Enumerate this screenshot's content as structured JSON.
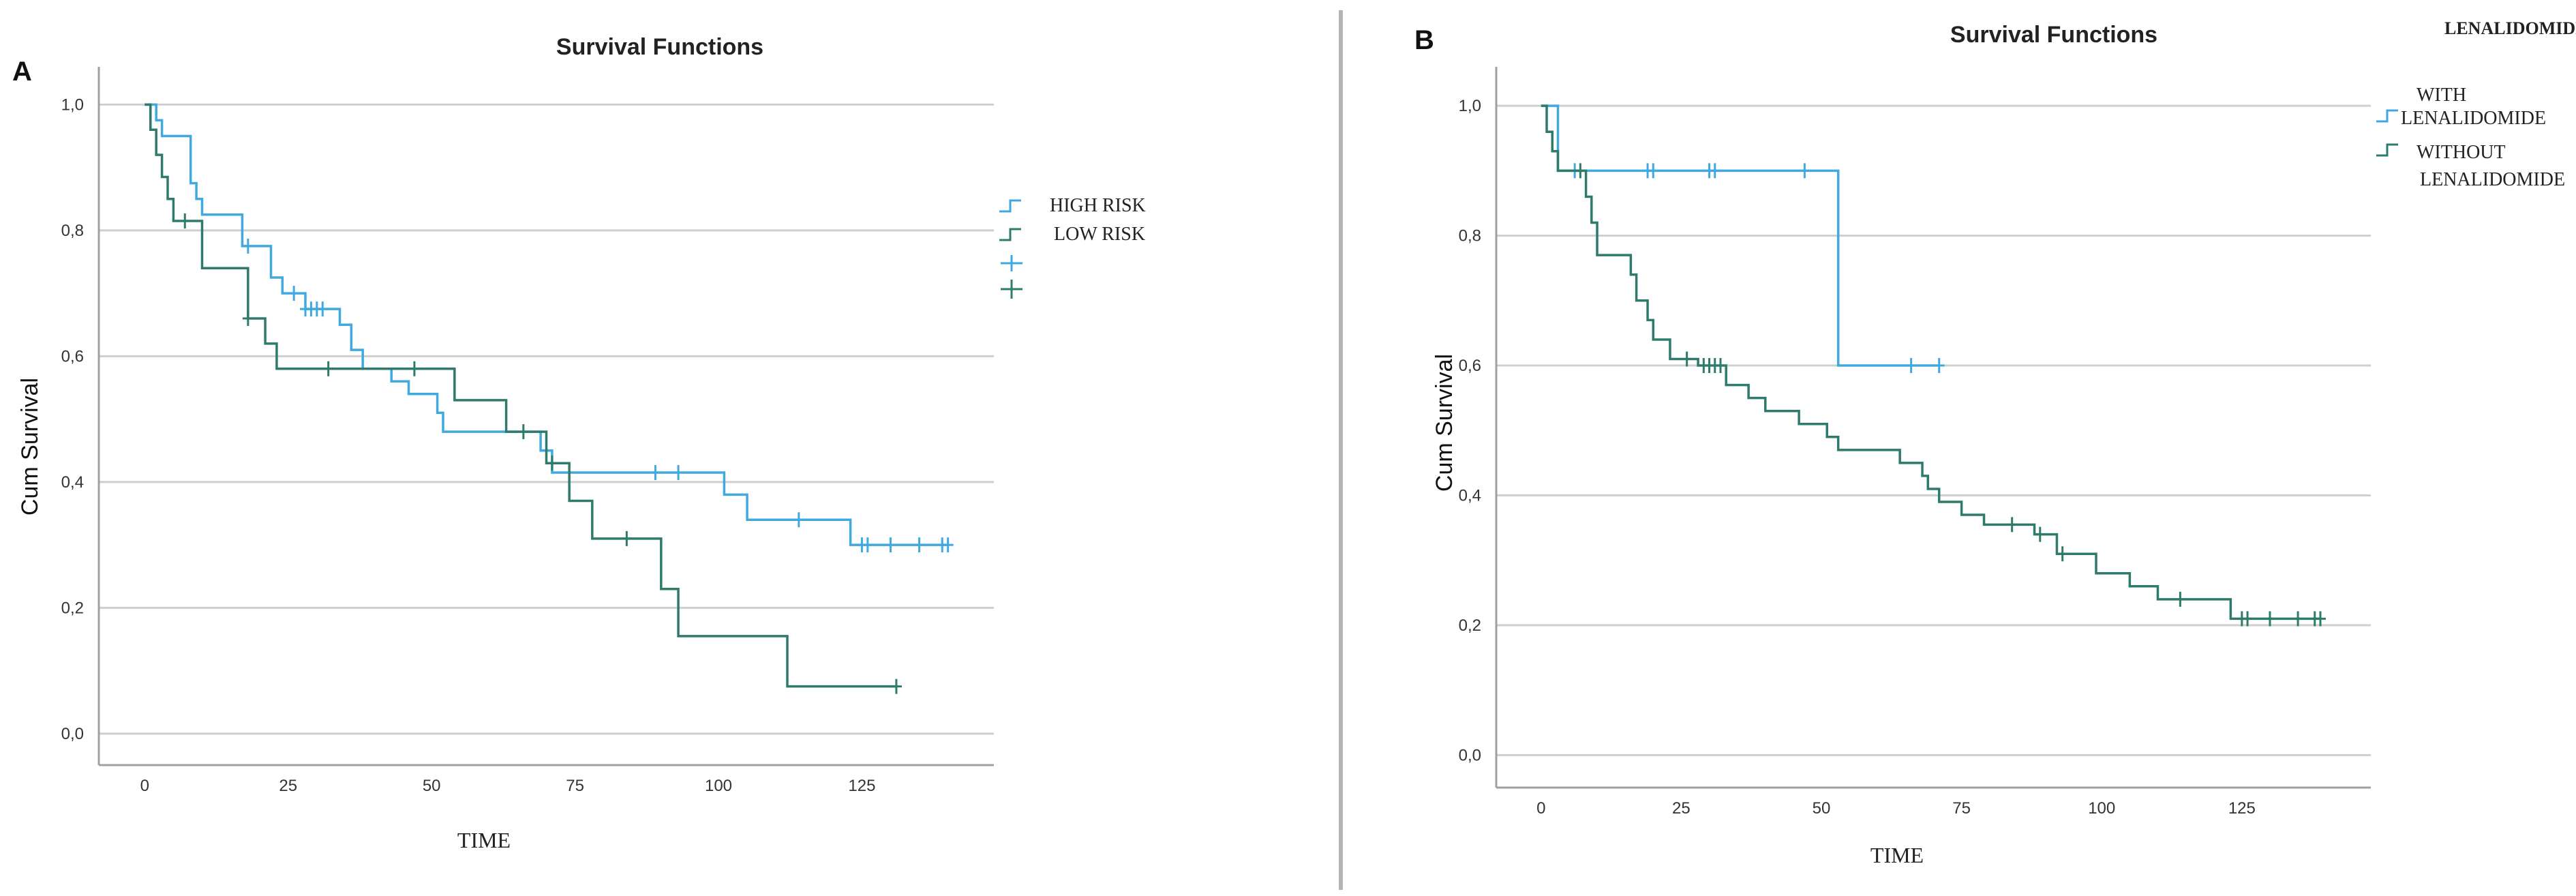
{
  "colors": {
    "high": "#3fa9e0",
    "low": "#2e7b6b",
    "with": "#3fa9e0",
    "without": "#2e7b6b",
    "grid": "#cfcfcf",
    "axis": "#a0a0a0"
  },
  "panels": [
    {
      "letter": "A",
      "legend_title": ""
    },
    {
      "letter": "B",
      "legend_title": "LENALIDOMIDE"
    }
  ],
  "chart_data": [
    {
      "type": "line",
      "title": "Survival Functions",
      "xlabel": "TIME",
      "ylabel": "Cum Survival",
      "xlim": [
        -8,
        148
      ],
      "ylim": [
        -0.05,
        1.06
      ],
      "xticks": [
        0,
        25,
        50,
        75,
        100,
        125
      ],
      "xtick_labels": [
        "0",
        "25",
        "50",
        "75",
        "100",
        "125"
      ],
      "yticks": [
        0.0,
        0.2,
        0.4,
        0.6,
        0.8,
        1.0
      ],
      "ytick_labels": [
        "0,0",
        "0,2",
        "0,4",
        "0,6",
        "0,8",
        "1,0"
      ],
      "grid": "horizontal",
      "legend_entries": [
        "HIGH RISK",
        "LOW RISK"
      ],
      "series": [
        {
          "name": "HIGH RISK",
          "color_key": "high",
          "steps": [
            [
              0,
              1.0
            ],
            [
              2,
              0.975
            ],
            [
              3,
              0.95
            ],
            [
              8,
              0.875
            ],
            [
              9,
              0.85
            ],
            [
              10,
              0.825
            ],
            [
              17,
              0.775
            ],
            [
              22,
              0.725
            ],
            [
              24,
              0.7
            ],
            [
              28,
              0.675
            ],
            [
              34,
              0.65
            ],
            [
              36,
              0.61
            ],
            [
              38,
              0.58
            ],
            [
              43,
              0.56
            ],
            [
              46,
              0.54
            ],
            [
              51,
              0.51
            ],
            [
              52,
              0.48
            ],
            [
              69,
              0.45
            ],
            [
              71,
              0.415
            ],
            [
              101,
              0.38
            ],
            [
              105,
              0.34
            ],
            [
              123,
              0.3
            ],
            [
              140,
              0.3
            ]
          ],
          "censored": [
            [
              18,
              0.775
            ],
            [
              26,
              0.7
            ],
            [
              28,
              0.675
            ],
            [
              29,
              0.675
            ],
            [
              30,
              0.675
            ],
            [
              31,
              0.675
            ],
            [
              89,
              0.415
            ],
            [
              93,
              0.415
            ],
            [
              114,
              0.34
            ],
            [
              125,
              0.3
            ],
            [
              126,
              0.3
            ],
            [
              130,
              0.3
            ],
            [
              135,
              0.3
            ],
            [
              139,
              0.3
            ],
            [
              140,
              0.3
            ]
          ]
        },
        {
          "name": "LOW RISK",
          "color_key": "low",
          "steps": [
            [
              0,
              1.0
            ],
            [
              1,
              0.96
            ],
            [
              2,
              0.92
            ],
            [
              3,
              0.885
            ],
            [
              4,
              0.85
            ],
            [
              5,
              0.815
            ],
            [
              10,
              0.74
            ],
            [
              18,
              0.66
            ],
            [
              21,
              0.62
            ],
            [
              23,
              0.58
            ],
            [
              54,
              0.53
            ],
            [
              63,
              0.48
            ],
            [
              70,
              0.43
            ],
            [
              74,
              0.37
            ],
            [
              78,
              0.31
            ],
            [
              90,
              0.23
            ],
            [
              93,
              0.155
            ],
            [
              112,
              0.075
            ],
            [
              131,
              0.075
            ]
          ],
          "censored": [
            [
              7,
              0.815
            ],
            [
              18,
              0.66
            ],
            [
              32,
              0.58
            ],
            [
              47,
              0.58
            ],
            [
              66,
              0.48
            ],
            [
              71,
              0.43
            ],
            [
              84,
              0.31
            ],
            [
              131,
              0.075
            ]
          ]
        }
      ]
    },
    {
      "type": "line",
      "title": "Survival Functions",
      "xlabel": "TIME",
      "ylabel": "Cum Survival",
      "xlim": [
        -8,
        148
      ],
      "ylim": [
        -0.05,
        1.06
      ],
      "xticks": [
        0,
        25,
        50,
        75,
        100,
        125
      ],
      "xtick_labels": [
        "0",
        "25",
        "50",
        "75",
        "100",
        "125"
      ],
      "yticks": [
        0.0,
        0.2,
        0.4,
        0.6,
        0.8,
        1.0
      ],
      "ytick_labels": [
        "0,0",
        "0,2",
        "0,4",
        "0,6",
        "0,8",
        "1,0"
      ],
      "grid": "horizontal",
      "legend_entries": [
        "WITH LENALIDOMIDE",
        "WITHOUT LENALIDOMIDE"
      ],
      "series": [
        {
          "name": "WITH LENALIDOMIDE",
          "color_key": "with",
          "steps": [
            [
              0,
              1.0
            ],
            [
              3,
              0.9
            ],
            [
              53,
              0.6
            ],
            [
              71,
              0.6
            ]
          ],
          "censored": [
            [
              6,
              0.9
            ],
            [
              19,
              0.9
            ],
            [
              20,
              0.9
            ],
            [
              30,
              0.9
            ],
            [
              31,
              0.9
            ],
            [
              47,
              0.9
            ],
            [
              66,
              0.6
            ],
            [
              71,
              0.6
            ]
          ]
        },
        {
          "name": "WITHOUT LENALIDOMIDE",
          "color_key": "without",
          "steps": [
            [
              0,
              1.0
            ],
            [
              1,
              0.96
            ],
            [
              2,
              0.93
            ],
            [
              3,
              0.9
            ],
            [
              8,
              0.86
            ],
            [
              9,
              0.82
            ],
            [
              10,
              0.77
            ],
            [
              16,
              0.74
            ],
            [
              17,
              0.7
            ],
            [
              19,
              0.67
            ],
            [
              20,
              0.64
            ],
            [
              23,
              0.61
            ],
            [
              28,
              0.6
            ],
            [
              33,
              0.57
            ],
            [
              37,
              0.55
            ],
            [
              40,
              0.53
            ],
            [
              46,
              0.51
            ],
            [
              51,
              0.49
            ],
            [
              53,
              0.47
            ],
            [
              64,
              0.45
            ],
            [
              68,
              0.43
            ],
            [
              69,
              0.41
            ],
            [
              71,
              0.39
            ],
            [
              75,
              0.37
            ],
            [
              79,
              0.355
            ],
            [
              88,
              0.34
            ],
            [
              92,
              0.31
            ],
            [
              99,
              0.28
            ],
            [
              105,
              0.26
            ],
            [
              110,
              0.24
            ],
            [
              123,
              0.21
            ],
            [
              139,
              0.21
            ]
          ],
          "censored": [
            [
              7,
              0.9
            ],
            [
              26,
              0.61
            ],
            [
              29,
              0.6
            ],
            [
              30,
              0.6
            ],
            [
              31,
              0.6
            ],
            [
              32,
              0.6
            ],
            [
              84,
              0.355
            ],
            [
              89,
              0.34
            ],
            [
              93,
              0.31
            ],
            [
              114,
              0.24
            ],
            [
              125,
              0.21
            ],
            [
              126,
              0.21
            ],
            [
              130,
              0.21
            ],
            [
              135,
              0.21
            ],
            [
              138,
              0.21
            ],
            [
              139,
              0.21
            ]
          ]
        }
      ]
    }
  ]
}
